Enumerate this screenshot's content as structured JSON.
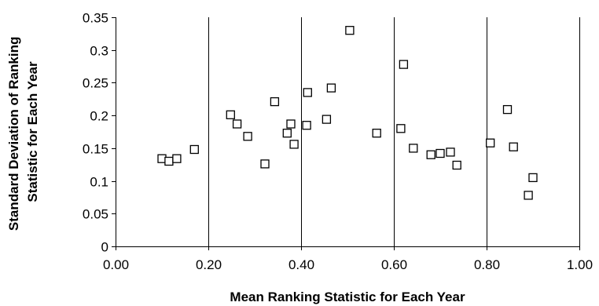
{
  "chart_data": {
    "type": "scatter",
    "title": "",
    "xlabel": "Mean Ranking Statistic for Each Year",
    "ylabel_lines": [
      "Standard Deviation of Ranking",
      "Statistic for Each Year"
    ],
    "xlim": [
      0,
      1.0
    ],
    "ylim": [
      0,
      0.35
    ],
    "x_ticks": [
      0,
      0.2,
      0.4,
      0.6,
      0.8,
      1.0
    ],
    "x_tick_labels": [
      "0.00",
      "0.20",
      "0.40",
      "0.60",
      "0.80",
      "1.00"
    ],
    "y_ticks": [
      0,
      0.05,
      0.1,
      0.15,
      0.2,
      0.25,
      0.3,
      0.35
    ],
    "y_tick_labels": [
      "0",
      "0.05",
      "0.1",
      "0.15",
      "0.2",
      "0.25",
      "0.3",
      "0.35"
    ],
    "grid": "vertical-major",
    "legend": "none",
    "marker": "open-square",
    "colors": {
      "marker_stroke": "#000000",
      "grid": "#000000",
      "background": "#ffffff"
    },
    "points": [
      {
        "x": 0.1,
        "y": 0.134
      },
      {
        "x": 0.115,
        "y": 0.13
      },
      {
        "x": 0.132,
        "y": 0.134
      },
      {
        "x": 0.17,
        "y": 0.148
      },
      {
        "x": 0.248,
        "y": 0.201
      },
      {
        "x": 0.262,
        "y": 0.187
      },
      {
        "x": 0.285,
        "y": 0.168
      },
      {
        "x": 0.322,
        "y": 0.126
      },
      {
        "x": 0.343,
        "y": 0.221
      },
      {
        "x": 0.37,
        "y": 0.173
      },
      {
        "x": 0.378,
        "y": 0.187
      },
      {
        "x": 0.385,
        "y": 0.156
      },
      {
        "x": 0.412,
        "y": 0.185
      },
      {
        "x": 0.414,
        "y": 0.235
      },
      {
        "x": 0.455,
        "y": 0.194
      },
      {
        "x": 0.465,
        "y": 0.242
      },
      {
        "x": 0.505,
        "y": 0.33
      },
      {
        "x": 0.563,
        "y": 0.173
      },
      {
        "x": 0.615,
        "y": 0.18
      },
      {
        "x": 0.621,
        "y": 0.278
      },
      {
        "x": 0.642,
        "y": 0.15
      },
      {
        "x": 0.68,
        "y": 0.14
      },
      {
        "x": 0.7,
        "y": 0.142
      },
      {
        "x": 0.722,
        "y": 0.144
      },
      {
        "x": 0.736,
        "y": 0.124
      },
      {
        "x": 0.808,
        "y": 0.158
      },
      {
        "x": 0.845,
        "y": 0.209
      },
      {
        "x": 0.858,
        "y": 0.152
      },
      {
        "x": 0.89,
        "y": 0.078
      },
      {
        "x": 0.9,
        "y": 0.105
      }
    ]
  }
}
